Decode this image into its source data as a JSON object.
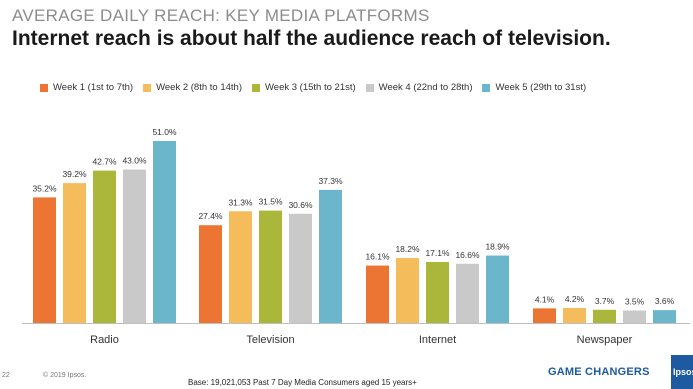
{
  "kicker": "AVERAGE DAILY REACH: KEY MEDIA PLATFORMS",
  "headline": "Internet reach is about half the audience reach of television.",
  "footer": {
    "page": "22",
    "copyright": "© 2019 Ipsos.",
    "base": "Base: 19,021,053 Past 7 Day Media Consumers aged 15 years+"
  },
  "brand": {
    "tagline": "GAME CHANGERS",
    "logo": "Ipsos"
  },
  "chart_data": {
    "type": "bar",
    "categories": [
      "Radio",
      "Television",
      "Internet",
      "Newspaper"
    ],
    "series": [
      {
        "name": "Week 1 (1st to 7th)",
        "color": "#ED7534",
        "values": [
          35.2,
          27.4,
          16.1,
          4.1
        ]
      },
      {
        "name": "Week 2 (8th to 14th)",
        "color": "#F5BC5C",
        "values": [
          39.2,
          31.3,
          18.2,
          4.2
        ]
      },
      {
        "name": "Week 3 (15th to 21st)",
        "color": "#AAB73A",
        "values": [
          42.7,
          31.5,
          17.1,
          3.7
        ]
      },
      {
        "name": "Week 4 (22nd to 28th)",
        "color": "#C9C9C9",
        "values": [
          43.0,
          30.6,
          16.6,
          3.5
        ]
      },
      {
        "name": "Week 5 (29th to 31st)",
        "color": "#6CB6CC",
        "values": [
          51.0,
          37.3,
          18.9,
          3.6
        ]
      }
    ],
    "value_suffix": "%",
    "ylim": [
      0,
      51
    ],
    "grid": false,
    "legend_position": "top"
  }
}
